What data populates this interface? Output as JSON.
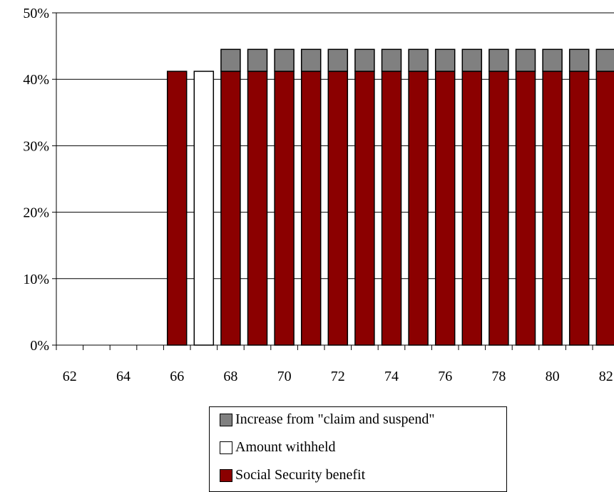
{
  "chart_data": {
    "type": "bar",
    "stacked": true,
    "x": [
      62,
      63,
      64,
      65,
      66,
      67,
      68,
      69,
      70,
      71,
      72,
      73,
      74,
      75,
      76,
      77,
      78,
      79,
      80,
      81,
      82
    ],
    "tick_labels": [
      "62",
      "64",
      "66",
      "68",
      "70",
      "72",
      "74",
      "76",
      "78",
      "80",
      "82"
    ],
    "y_ticks": [
      "0%",
      "10%",
      "20%",
      "30%",
      "40%",
      "50%"
    ],
    "ylim": [
      0,
      50
    ],
    "grid": true,
    "legend_position": "bottom",
    "series": [
      {
        "name": "Social Security benefit",
        "color": "#8b0000",
        "values": [
          0,
          0,
          0,
          0,
          41.2,
          0,
          41.2,
          41.2,
          41.2,
          41.2,
          41.2,
          41.2,
          41.2,
          41.2,
          41.2,
          41.2,
          41.2,
          41.2,
          41.2,
          41.2,
          41.2
        ]
      },
      {
        "name": "Amount withheld",
        "color": "#ffffff",
        "values": [
          0,
          0,
          0,
          0,
          0,
          41.2,
          0,
          0,
          0,
          0,
          0,
          0,
          0,
          0,
          0,
          0,
          0,
          0,
          0,
          0,
          0
        ]
      },
      {
        "name": "Increase from \"claim and suspend\"",
        "color": "#808080",
        "values": [
          0,
          0,
          0,
          0,
          0,
          0,
          3.3,
          3.3,
          3.3,
          3.3,
          3.3,
          3.3,
          3.3,
          3.3,
          3.3,
          3.3,
          3.3,
          3.3,
          3.3,
          3.3,
          3.3
        ]
      }
    ],
    "legend": [
      "Increase from \"claim and suspend\"",
      "Amount withheld",
      "Social Security benefit"
    ]
  }
}
